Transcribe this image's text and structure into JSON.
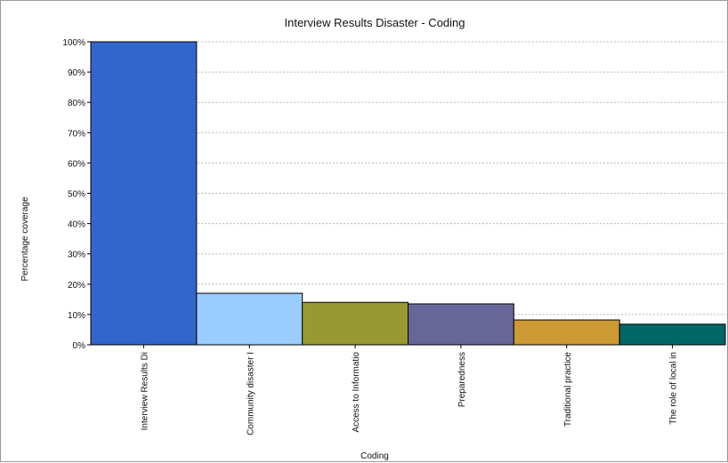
{
  "chart_data": {
    "type": "bar",
    "title": "Interview Results Disaster - Coding",
    "xlabel": "Coding",
    "ylabel": "Percentage coverage",
    "categories": [
      "Interview Results Di",
      "Community disaster I",
      "Access to Informatio",
      "Preparedness",
      "Traditional practice",
      "The role of local in"
    ],
    "values": [
      100,
      17,
      14,
      13.5,
      8.2,
      6.8
    ],
    "colors": [
      "#3366cc",
      "#99ccff",
      "#999933",
      "#666699",
      "#cc9933",
      "#006666"
    ],
    "ylim": [
      0,
      100
    ],
    "yticks": [
      0,
      10,
      20,
      30,
      40,
      50,
      60,
      70,
      80,
      90,
      100
    ],
    "ytick_labels": [
      "0%",
      "10%",
      "20%",
      "30%",
      "40%",
      "50%",
      "60%",
      "70%",
      "80%",
      "90%",
      "100%"
    ],
    "grid": true,
    "legend": "none"
  }
}
